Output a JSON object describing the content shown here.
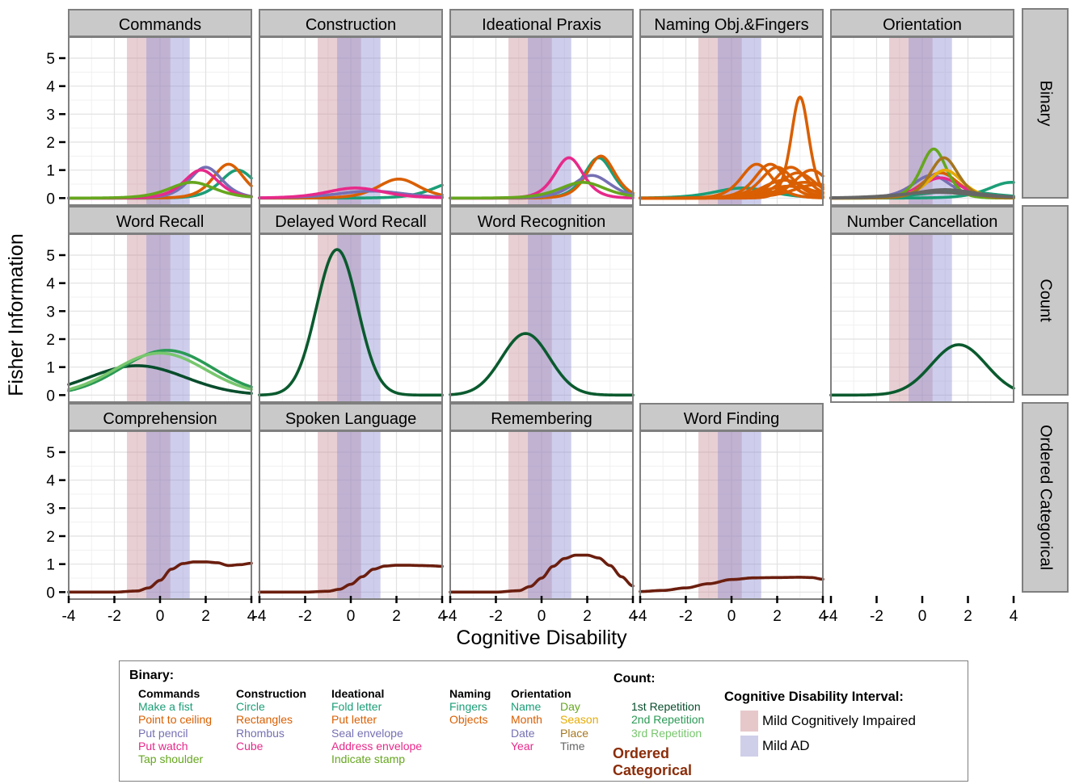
{
  "chart_data": {
    "type": "line",
    "ylabel": "Fisher Information",
    "xlabel": "Cognitive Disability",
    "xlim": [
      -4,
      4
    ],
    "ylim": [
      -0.25,
      5.75
    ],
    "x_ticks": [
      "-4",
      "-2",
      "0",
      "2",
      "4"
    ],
    "y_ticks": [
      "0",
      "1",
      "2",
      "3",
      "4",
      "5"
    ],
    "grid": true,
    "row_strips": [
      "Binary",
      "Count",
      "Ordered Categorical"
    ],
    "shaded_intervals": [
      {
        "name": "Mild Cognitively Impaired",
        "x": [
          -1.45,
          0.45
        ],
        "color": "#c88c96"
      },
      {
        "name": "Mild AD",
        "x": [
          -0.6,
          1.3
        ],
        "color": "#8a8ad2"
      }
    ],
    "panels": [
      {
        "row": 0,
        "col": 0,
        "title": "Commands",
        "series": [
          {
            "color": "#1b9e77",
            "curve": "logistic",
            "a": 2.0,
            "b": 3.4
          },
          {
            "color": "#d95f02",
            "curve": "logistic",
            "a": 2.2,
            "b": 3.0
          },
          {
            "color": "#7570b3",
            "curve": "logistic",
            "a": 2.1,
            "b": 2.0
          },
          {
            "color": "#e7298a",
            "curve": "logistic",
            "a": 2.0,
            "b": 1.8
          },
          {
            "color": "#66a61e",
            "curve": "logistic",
            "a": 1.5,
            "b": 1.4
          }
        ]
      },
      {
        "row": 0,
        "col": 1,
        "title": "Construction",
        "series": [
          {
            "color": "#1b9e77",
            "curve": "logistic",
            "a": 1.5,
            "b": 4.6
          },
          {
            "color": "#d95f02",
            "curve": "logistic",
            "a": 1.65,
            "b": 2.1
          },
          {
            "color": "#7570b3",
            "curve": "logistic",
            "a": 1.0,
            "b": 0.9
          },
          {
            "color": "#e7298a",
            "curve": "logistic",
            "a": 1.2,
            "b": 0.2
          }
        ]
      },
      {
        "row": 0,
        "col": 2,
        "title": "Ideational Praxis",
        "series": [
          {
            "color": "#1b9e77",
            "curve": "logistic",
            "a": 2.4,
            "b": 2.5
          },
          {
            "color": "#d95f02",
            "curve": "logistic",
            "a": 2.45,
            "b": 2.6
          },
          {
            "color": "#7570b3",
            "curve": "logistic",
            "a": 1.8,
            "b": 2.2
          },
          {
            "color": "#e7298a",
            "curve": "logistic",
            "a": 2.4,
            "b": 1.2
          },
          {
            "color": "#66a61e",
            "curve": "logistic",
            "a": 1.5,
            "b": 1.8
          }
        ]
      },
      {
        "row": 0,
        "col": 3,
        "title": "Naming Obj.&Fingers",
        "series": [
          {
            "color": "#1b9e77",
            "curve": "logistic",
            "a": 1.2,
            "b": 0.5
          },
          {
            "color": "#d95f02",
            "curve": "logistic",
            "a": 3.8,
            "b": 3.0
          },
          {
            "color": "#d95f02",
            "curve": "logistic",
            "a": 2.2,
            "b": 1.1
          },
          {
            "color": "#d95f02",
            "curve": "logistic",
            "a": 2.2,
            "b": 1.7
          },
          {
            "color": "#d95f02",
            "curve": "logistic",
            "a": 2.1,
            "b": 2.0
          },
          {
            "color": "#d95f02",
            "curve": "logistic",
            "a": 2.1,
            "b": 2.6
          },
          {
            "color": "#d95f02",
            "curve": "logistic",
            "a": 2.0,
            "b": 3.5
          },
          {
            "color": "#d95f02",
            "curve": "logistic",
            "a": 1.9,
            "b": 2.9
          },
          {
            "color": "#d95f02",
            "curve": "logistic",
            "a": 1.6,
            "b": 2.3
          },
          {
            "color": "#d95f02",
            "curve": "logistic",
            "a": 1.5,
            "b": 3.2
          },
          {
            "color": "#d95f02",
            "curve": "logistic",
            "a": 1.4,
            "b": 3.8
          },
          {
            "color": "#d95f02",
            "curve": "logistic",
            "a": 1.3,
            "b": 2.5
          }
        ]
      },
      {
        "row": 0,
        "col": 4,
        "title": "Orientation",
        "series": [
          {
            "color": "#1b9e77",
            "curve": "logistic",
            "a": 1.5,
            "b": 3.9
          },
          {
            "color": "#1b9e77",
            "curve": "logistic",
            "a": 1.0,
            "b": 1.5
          },
          {
            "color": "#d95f02",
            "curve": "logistic",
            "a": 1.9,
            "b": 0.8
          },
          {
            "color": "#7570b3",
            "curve": "logistic",
            "a": 1.8,
            "b": 0.4
          },
          {
            "color": "#e7298a",
            "curve": "logistic",
            "a": 1.7,
            "b": 0.8
          },
          {
            "color": "#66a61e",
            "curve": "logistic",
            "a": 2.65,
            "b": 0.5
          },
          {
            "color": "#e6ab02",
            "curve": "logistic",
            "a": 2.0,
            "b": 1.0
          },
          {
            "color": "#a6761d",
            "curve": "logistic",
            "a": 2.4,
            "b": 0.95
          },
          {
            "color": "#666666",
            "curve": "logistic",
            "a": 1.1,
            "b": 1.0
          },
          {
            "color": "#666666",
            "curve": "logistic",
            "a": 0.9,
            "b": 0.6
          }
        ]
      },
      {
        "row": 1,
        "col": 0,
        "title": "Word Recall",
        "series": [
          {
            "name": "1st Repetition",
            "color": "#084d2c",
            "curve": "gaussian",
            "peak": 1.05,
            "mu": -1.0,
            "sigma": 2.1
          },
          {
            "name": "2nd Repetition",
            "color": "#2a9a55",
            "curve": "gaussian",
            "peak": 1.6,
            "mu": 0.3,
            "sigma": 2.0
          },
          {
            "name": "3rd Repetition",
            "color": "#78c66e",
            "curve": "gaussian",
            "peak": 1.5,
            "mu": 0.0,
            "sigma": 2.0
          }
        ]
      },
      {
        "row": 1,
        "col": 1,
        "title": "Delayed Word Recall",
        "series": [
          {
            "color": "#0a5a2e",
            "curve": "gaussian",
            "peak": 5.2,
            "mu": -0.6,
            "sigma": 0.9
          }
        ]
      },
      {
        "row": 1,
        "col": 2,
        "title": "Word Recognition",
        "series": [
          {
            "color": "#0a5a2e",
            "curve": "gaussian",
            "peak": 2.2,
            "mu": -0.7,
            "sigma": 1.05
          }
        ]
      },
      {
        "row": 1,
        "col": 4,
        "title": "Number Cancellation",
        "series": [
          {
            "color": "#0a5a2e",
            "curve": "gaussian",
            "peak": 1.8,
            "mu": 1.6,
            "sigma": 1.2
          }
        ]
      },
      {
        "row": 2,
        "col": 0,
        "title": "Comprehension",
        "series": [
          {
            "color": "#6b1e0e",
            "curve": "points",
            "points": [
              [
                -4,
                0
              ],
              [
                -2,
                0
              ],
              [
                -1,
                0.04
              ],
              [
                -0.5,
                0.15
              ],
              [
                0,
                0.42
              ],
              [
                0.5,
                0.82
              ],
              [
                1,
                1.02
              ],
              [
                1.5,
                1.08
              ],
              [
                2,
                1.08
              ],
              [
                2.5,
                1.05
              ],
              [
                3,
                0.95
              ],
              [
                3.5,
                0.98
              ],
              [
                4,
                1.03
              ]
            ]
          }
        ]
      },
      {
        "row": 2,
        "col": 1,
        "title": "Spoken Language",
        "series": [
          {
            "color": "#6b1e0e",
            "curve": "points",
            "points": [
              [
                -4,
                0
              ],
              [
                -2,
                0
              ],
              [
                -1,
                0.03
              ],
              [
                -0.5,
                0.1
              ],
              [
                0,
                0.28
              ],
              [
                0.5,
                0.55
              ],
              [
                1,
                0.82
              ],
              [
                1.5,
                0.93
              ],
              [
                2,
                0.96
              ],
              [
                2.5,
                0.96
              ],
              [
                3,
                0.95
              ],
              [
                3.5,
                0.94
              ],
              [
                4,
                0.92
              ]
            ]
          }
        ]
      },
      {
        "row": 2,
        "col": 2,
        "title": "Remembering",
        "series": [
          {
            "color": "#6b1e0e",
            "curve": "points",
            "points": [
              [
                -4,
                0
              ],
              [
                -2,
                0
              ],
              [
                -1,
                0.05
              ],
              [
                -0.5,
                0.2
              ],
              [
                0,
                0.5
              ],
              [
                0.5,
                0.92
              ],
              [
                1,
                1.2
              ],
              [
                1.5,
                1.32
              ],
              [
                2,
                1.32
              ],
              [
                2.5,
                1.22
              ],
              [
                3,
                0.95
              ],
              [
                3.5,
                0.55
              ],
              [
                4,
                0.22
              ]
            ]
          }
        ]
      },
      {
        "row": 2,
        "col": 3,
        "title": "Word Finding",
        "series": [
          {
            "color": "#6b1e0e",
            "curve": "points",
            "points": [
              [
                -4,
                0.02
              ],
              [
                -3,
                0.06
              ],
              [
                -2,
                0.15
              ],
              [
                -1,
                0.3
              ],
              [
                0,
                0.45
              ],
              [
                1,
                0.51
              ],
              [
                2,
                0.52
              ],
              [
                3,
                0.53
              ],
              [
                3.5,
                0.52
              ],
              [
                4,
                0.46
              ]
            ]
          }
        ]
      }
    ],
    "legend": {
      "binary_title": "Binary:",
      "count_title": "Count:",
      "ordered_label": [
        "Ordered",
        "Categorical"
      ],
      "interval_title": "Cognitive Disability Interval:",
      "groups": [
        {
          "head": "Commands",
          "items": [
            {
              "text": "Make a fist",
              "color": "#1b9e77"
            },
            {
              "text": "Point to ceiling",
              "color": "#d95f02"
            },
            {
              "text": "Put pencil",
              "color": "#7570b3"
            },
            {
              "text": "Put watch",
              "color": "#e7298a"
            },
            {
              "text": "Tap shoulder",
              "color": "#66a61e"
            }
          ]
        },
        {
          "head": "Construction",
          "items": [
            {
              "text": "Circle",
              "color": "#1b9e77"
            },
            {
              "text": "Rectangles",
              "color": "#d95f02"
            },
            {
              "text": "Rhombus",
              "color": "#7570b3"
            },
            {
              "text": "Cube",
              "color": "#e7298a"
            }
          ]
        },
        {
          "head": "Ideational",
          "items": [
            {
              "text": "Fold letter",
              "color": "#1b9e77"
            },
            {
              "text": "Put letter",
              "color": "#d95f02"
            },
            {
              "text": "Seal envelope",
              "color": "#7570b3"
            },
            {
              "text": "Address envelope",
              "color": "#e7298a"
            },
            {
              "text": "Indicate stamp",
              "color": "#66a61e"
            }
          ]
        },
        {
          "head": "Naming",
          "items": [
            {
              "text": "Fingers",
              "color": "#1b9e77"
            },
            {
              "text": "Objects",
              "color": "#d95f02"
            }
          ]
        },
        {
          "head": "Orientation",
          "items": [
            {
              "text": "Name",
              "color": "#1b9e77"
            },
            {
              "text": "Month",
              "color": "#d95f02"
            },
            {
              "text": "Date",
              "color": "#7570b3"
            },
            {
              "text": "Year",
              "color": "#e7298a"
            }
          ]
        },
        {
          "head": "",
          "items": [
            {
              "text": "Day",
              "color": "#66a61e"
            },
            {
              "text": "Season",
              "color": "#e6ab02"
            },
            {
              "text": "Place",
              "color": "#a6761d"
            },
            {
              "text": "Time",
              "color": "#666666"
            }
          ]
        },
        {
          "head": "",
          "items": [
            {
              "text": "1st Repetition",
              "color": "#084d2c"
            },
            {
              "text": "2nd Repetition",
              "color": "#2a9a55"
            },
            {
              "text": "3rd Repetition",
              "color": "#78c66e"
            }
          ]
        }
      ],
      "intervals": [
        {
          "label": "Mild Cognitively Impaired",
          "color": "#e6c8cb"
        },
        {
          "label": "Mild AD",
          "color": "#cfcfea"
        }
      ],
      "ordered_color": "#8b2d0a"
    }
  }
}
